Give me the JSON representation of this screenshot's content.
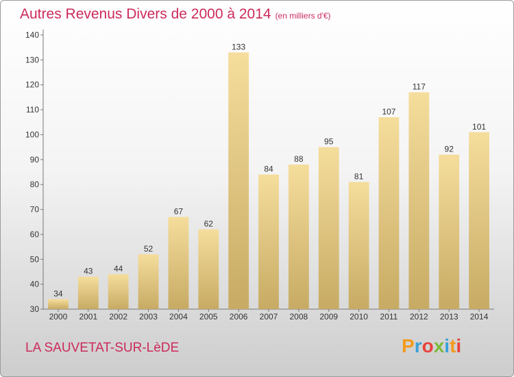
{
  "header": {
    "title": "Autres Revenus Divers de 2000 à 2014",
    "subtitle": "(en milliers d'€)"
  },
  "footer": {
    "commune": "LA SAUVETAT-SUR-LèDE",
    "brand": "Proxiti"
  },
  "colors": {
    "accent": "#cc2a5a",
    "bar_light": "#f5dd9c",
    "bar_dark": "#c7ab64"
  },
  "chart_data": {
    "type": "bar",
    "categories": [
      "2000",
      "2001",
      "2002",
      "2003",
      "2004",
      "2005",
      "2006",
      "2007",
      "2008",
      "2009",
      "2010",
      "2011",
      "2012",
      "2013",
      "2014"
    ],
    "values": [
      34,
      43,
      44,
      52,
      67,
      62,
      133,
      84,
      88,
      95,
      81,
      107,
      117,
      92,
      101
    ],
    "title": "Autres Revenus Divers de 2000 à 2014",
    "subtitle": "(en milliers d'€)",
    "xlabel": "",
    "ylabel": "",
    "ylim": [
      30,
      140
    ],
    "yticks": [
      30,
      40,
      50,
      60,
      70,
      80,
      90,
      100,
      110,
      120,
      130,
      140
    ],
    "grid": false,
    "legend": "none",
    "data_labels": true
  }
}
